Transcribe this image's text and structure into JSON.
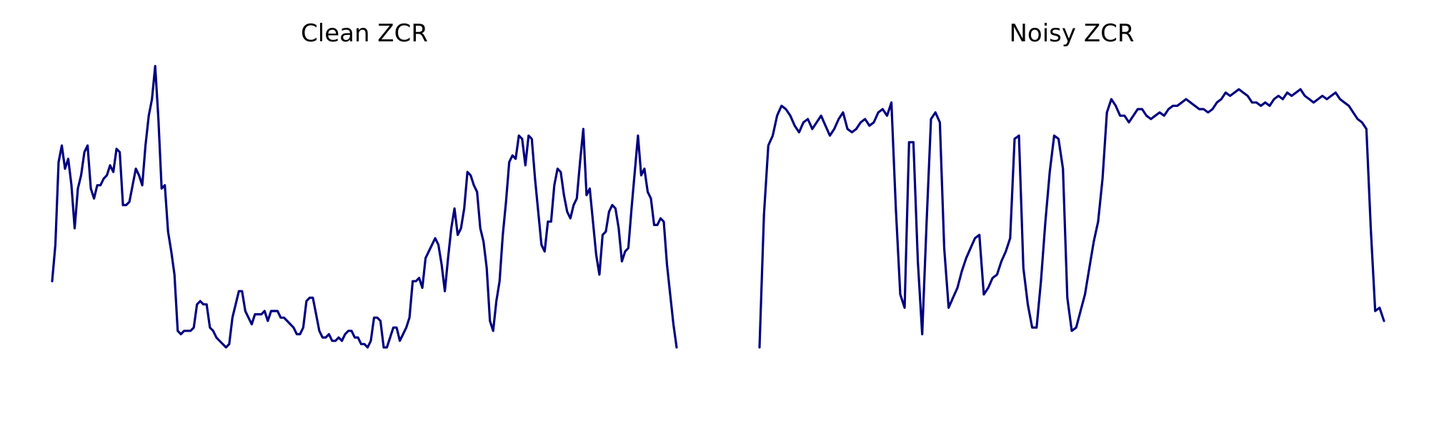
{
  "colors": {
    "line": "#000080",
    "background": "#ffffff"
  },
  "chart_data": [
    {
      "type": "line",
      "title": "Clean ZCR",
      "xlabel": "",
      "ylabel": "",
      "axes_visible": false,
      "grid": false,
      "ylim": [
        0.0,
        1.0
      ],
      "series": [
        {
          "values": [
            0.34,
            0.45,
            0.7,
            0.75,
            0.68,
            0.71,
            0.63,
            0.5,
            0.62,
            0.66,
            0.73,
            0.75,
            0.62,
            0.59,
            0.63,
            0.63,
            0.65,
            0.66,
            0.69,
            0.67,
            0.74,
            0.73,
            0.57,
            0.57,
            0.58,
            0.63,
            0.68,
            0.66,
            0.63,
            0.75,
            0.84,
            0.89,
            0.99,
            0.83,
            0.62,
            0.63,
            0.49,
            0.43,
            0.36,
            0.19,
            0.18,
            0.19,
            0.19,
            0.19,
            0.2,
            0.27,
            0.28,
            0.27,
            0.27,
            0.2,
            0.19,
            0.17,
            0.16,
            0.15,
            0.14,
            0.15,
            0.23,
            0.27,
            0.31,
            0.31,
            0.25,
            0.23,
            0.21,
            0.24,
            0.24,
            0.24,
            0.25,
            0.22,
            0.25,
            0.25,
            0.25,
            0.23,
            0.23,
            0.22,
            0.21,
            0.2,
            0.18,
            0.18,
            0.2,
            0.28,
            0.29,
            0.29,
            0.24,
            0.19,
            0.17,
            0.17,
            0.18,
            0.16,
            0.16,
            0.17,
            0.16,
            0.18,
            0.19,
            0.19,
            0.17,
            0.17,
            0.15,
            0.15,
            0.14,
            0.16,
            0.23,
            0.23,
            0.22,
            0.14,
            0.14,
            0.17,
            0.2,
            0.2,
            0.16,
            0.18,
            0.2,
            0.23,
            0.34,
            0.34,
            0.35,
            0.32,
            0.41,
            0.43,
            0.45,
            0.47,
            0.45,
            0.39,
            0.31,
            0.41,
            0.5,
            0.56,
            0.48,
            0.5,
            0.56,
            0.67,
            0.66,
            0.63,
            0.61,
            0.5,
            0.46,
            0.38,
            0.22,
            0.19,
            0.28,
            0.34,
            0.48,
            0.58,
            0.7,
            0.72,
            0.71,
            0.78,
            0.77,
            0.69,
            0.78,
            0.77,
            0.65,
            0.55,
            0.45,
            0.43,
            0.52,
            0.52,
            0.63,
            0.68,
            0.67,
            0.6,
            0.55,
            0.53,
            0.57,
            0.59,
            0.7,
            0.8,
            0.6,
            0.62,
            0.52,
            0.42,
            0.36,
            0.48,
            0.49,
            0.55,
            0.57,
            0.56,
            0.5,
            0.4,
            0.43,
            0.44,
            0.56,
            0.67,
            0.78,
            0.66,
            0.68,
            0.61,
            0.59,
            0.51,
            0.51,
            0.53,
            0.52,
            0.39,
            0.3,
            0.21,
            0.14
          ]
        }
      ]
    },
    {
      "type": "line",
      "title": "Noisy ZCR",
      "xlabel": "",
      "ylabel": "",
      "axes_visible": false,
      "grid": false,
      "ylim": [
        0.0,
        1.0
      ],
      "series": [
        {
          "values": [
            0.14,
            0.54,
            0.75,
            0.78,
            0.84,
            0.87,
            0.86,
            0.84,
            0.81,
            0.79,
            0.82,
            0.83,
            0.8,
            0.82,
            0.84,
            0.81,
            0.78,
            0.8,
            0.83,
            0.85,
            0.8,
            0.79,
            0.8,
            0.82,
            0.83,
            0.81,
            0.82,
            0.85,
            0.86,
            0.84,
            0.88,
            0.56,
            0.3,
            0.26,
            0.76,
            0.76,
            0.4,
            0.18,
            0.52,
            0.83,
            0.85,
            0.82,
            0.44,
            0.26,
            0.29,
            0.32,
            0.37,
            0.41,
            0.44,
            0.47,
            0.48,
            0.3,
            0.32,
            0.35,
            0.36,
            0.4,
            0.43,
            0.47,
            0.77,
            0.78,
            0.38,
            0.27,
            0.2,
            0.2,
            0.34,
            0.52,
            0.67,
            0.78,
            0.77,
            0.68,
            0.29,
            0.19,
            0.2,
            0.25,
            0.3,
            0.38,
            0.46,
            0.52,
            0.65,
            0.85,
            0.89,
            0.87,
            0.84,
            0.84,
            0.82,
            0.84,
            0.86,
            0.86,
            0.84,
            0.83,
            0.84,
            0.85,
            0.84,
            0.86,
            0.87,
            0.87,
            0.88,
            0.89,
            0.88,
            0.87,
            0.86,
            0.86,
            0.85,
            0.86,
            0.88,
            0.89,
            0.91,
            0.9,
            0.91,
            0.92,
            0.91,
            0.9,
            0.88,
            0.88,
            0.87,
            0.88,
            0.87,
            0.89,
            0.9,
            0.89,
            0.91,
            0.9,
            0.91,
            0.92,
            0.9,
            0.89,
            0.88,
            0.89,
            0.9,
            0.89,
            0.9,
            0.91,
            0.89,
            0.88,
            0.87,
            0.85,
            0.83,
            0.82,
            0.8,
            0.5,
            0.25,
            0.26,
            0.22
          ]
        }
      ]
    }
  ]
}
